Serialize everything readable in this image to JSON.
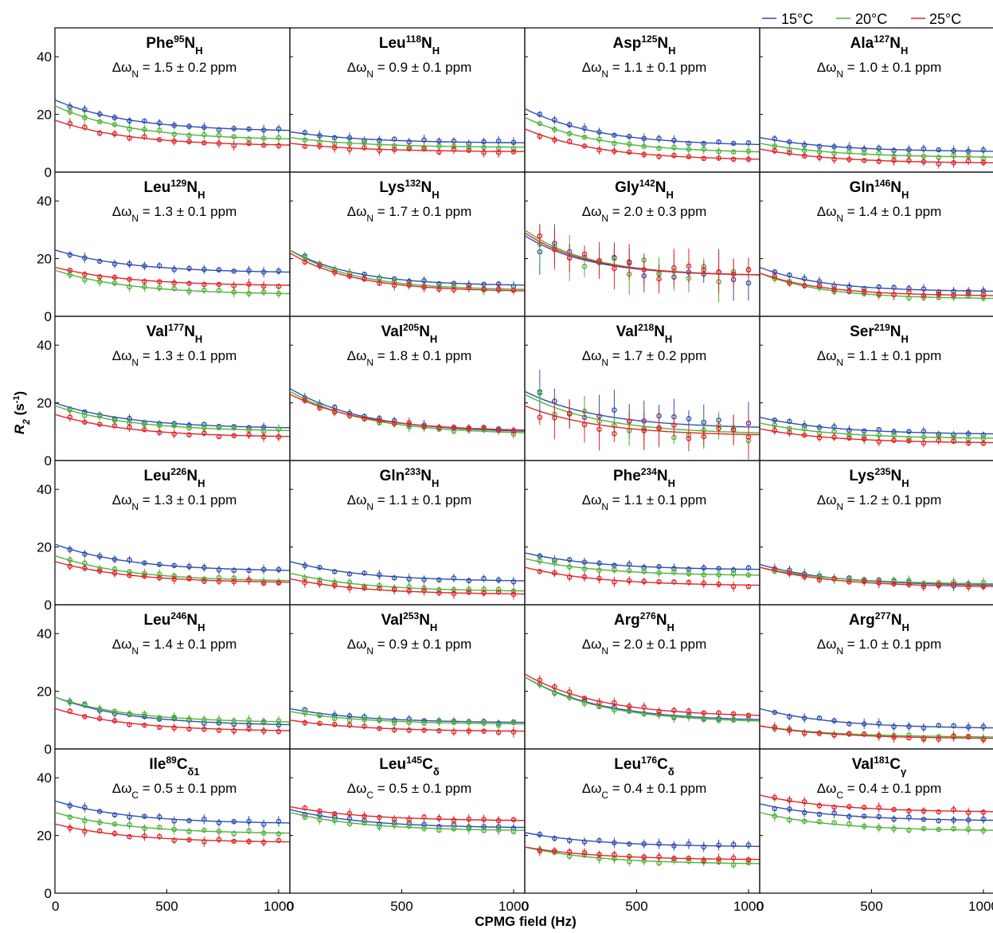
{
  "figure": {
    "xlabel": "CPMG field (Hz)",
    "ylabel_main": "R",
    "ylabel_sub": "2",
    "ylabel_units": " (s",
    "ylabel_sup": "-1",
    "ylabel_close": ")",
    "x_ticks": [
      "0",
      "500",
      "1000"
    ],
    "y_ticks": [
      "0",
      "20",
      "40"
    ],
    "xlim": [
      0,
      1050
    ],
    "ylim": [
      0,
      50
    ],
    "legend_position": "top-right",
    "legend": [
      {
        "label": "15°C",
        "color": "#2f4fb0"
      },
      {
        "label": "20°C",
        "color": "#4fb33a"
      },
      {
        "label": "25°C",
        "color": "#e0262a"
      }
    ]
  },
  "chart_data": {
    "type": "scatter",
    "x": [
      67,
      133,
      200,
      267,
      333,
      400,
      467,
      533,
      600,
      667,
      733,
      800,
      867,
      933,
      1000
    ],
    "xlabel": "CPMG field (Hz)",
    "ylabel": "R2 (s-1)",
    "xlim": [
      0,
      1050
    ],
    "ylim": [
      0,
      50
    ],
    "grid": false,
    "legend_position": "top-right",
    "panels": [
      {
        "res": "Phe",
        "num": "95",
        "atom": "N",
        "sub": "H",
        "dw": "N",
        "dwval": "1.5 ± 0.2 ppm",
        "fits": [
          [
            25,
            14
          ],
          [
            23,
            11
          ],
          [
            18,
            9
          ]
        ],
        "k": 3
      },
      {
        "res": "Leu",
        "num": "118",
        "atom": "N",
        "sub": "H",
        "dw": "N",
        "dwval": "0.9 ± 0.1 ppm",
        "fits": [
          [
            14,
            10
          ],
          [
            12,
            8.5
          ],
          [
            10,
            7
          ]
        ],
        "k": 3
      },
      {
        "res": "Asp",
        "num": "125",
        "atom": "N",
        "sub": "H",
        "dw": "N",
        "dwval": "1.1 ± 0.1 ppm",
        "fits": [
          [
            22,
            9
          ],
          [
            19,
            6.5
          ],
          [
            15,
            4
          ]
        ],
        "k": 3
      },
      {
        "res": "Ala",
        "num": "127",
        "atom": "N",
        "sub": "H",
        "dw": "N",
        "dwval": "1.0 ± 0.1 ppm",
        "fits": [
          [
            12,
            7
          ],
          [
            10,
            5
          ],
          [
            8,
            3
          ]
        ],
        "k": 3
      },
      {
        "res": "Leu",
        "num": "129",
        "atom": "N",
        "sub": "H",
        "dw": "N",
        "dwval": "1.3 ± 0.1 ppm",
        "fits": [
          [
            23,
            15
          ],
          [
            16,
            7.5
          ],
          [
            17,
            10.5
          ]
        ],
        "k": 3
      },
      {
        "res": "Lys",
        "num": "132",
        "atom": "N",
        "sub": "H",
        "dw": "N",
        "dwval": "1.7 ± 0.1 ppm",
        "fits": [
          [
            23,
            10.5
          ],
          [
            23,
            9
          ],
          [
            22,
            8.5
          ]
        ],
        "k": 3.5
      },
      {
        "res": "Gly",
        "num": "142",
        "atom": "N",
        "sub": "H",
        "dw": "N",
        "dwval": "2.0 ± 0.3 ppm",
        "fits": [
          [
            28,
            14
          ],
          [
            30,
            14
          ],
          [
            29,
            14
          ]
        ],
        "k": 3.5
      },
      {
        "res": "Gln",
        "num": "146",
        "atom": "N",
        "sub": "H",
        "dw": "N",
        "dwval": "1.4 ± 0.1 ppm",
        "fits": [
          [
            17,
            8.5
          ],
          [
            15,
            6
          ],
          [
            15,
            7
          ]
        ],
        "k": 3.5
      },
      {
        "res": "Val",
        "num": "177",
        "atom": "N",
        "sub": "H",
        "dw": "N",
        "dwval": "1.3 ± 0.1 ppm",
        "fits": [
          [
            20,
            11
          ],
          [
            19,
            10
          ],
          [
            16,
            8
          ]
        ],
        "k": 3
      },
      {
        "res": "Val",
        "num": "205",
        "atom": "N",
        "sub": "H",
        "dw": "N",
        "dwval": "1.8 ± 0.1 ppm",
        "fits": [
          [
            25,
            9.5
          ],
          [
            24,
            9
          ],
          [
            23,
            10
          ]
        ],
        "k": 3
      },
      {
        "res": "Val",
        "num": "218",
        "atom": "N",
        "sub": "H",
        "dw": "N",
        "dwval": "1.7 ± 0.2 ppm",
        "fits": [
          [
            24,
            11
          ],
          [
            23,
            9
          ],
          [
            19,
            8.5
          ]
        ],
        "k": 3
      },
      {
        "res": "Ser",
        "num": "219",
        "atom": "N",
        "sub": "H",
        "dw": "N",
        "dwval": "1.1 ± 0.1 ppm",
        "fits": [
          [
            15,
            9
          ],
          [
            13,
            7.5
          ],
          [
            11,
            6
          ]
        ],
        "k": 3
      },
      {
        "res": "Leu",
        "num": "226",
        "atom": "N",
        "sub": "H",
        "dw": "N",
        "dwval": "1.3 ± 0.1 ppm",
        "fits": [
          [
            21,
            11.5
          ],
          [
            17,
            8
          ],
          [
            15,
            7.5
          ]
        ],
        "k": 3
      },
      {
        "res": "Gln",
        "num": "233",
        "atom": "N",
        "sub": "H",
        "dw": "N",
        "dwval": "1.1 ± 0.1 ppm",
        "fits": [
          [
            15,
            8
          ],
          [
            11,
            4.5
          ],
          [
            9,
            3.5
          ]
        ],
        "k": 3
      },
      {
        "res": "Phe",
        "num": "234",
        "atom": "N",
        "sub": "H",
        "dw": "N",
        "dwval": "1.1 ± 0.1 ppm",
        "fits": [
          [
            18,
            12
          ],
          [
            16,
            10
          ],
          [
            13,
            6.5
          ]
        ],
        "k": 3
      },
      {
        "res": "Lys",
        "num": "235",
        "atom": "N",
        "sub": "H",
        "dw": "N",
        "dwval": "1.2 ± 0.1 ppm",
        "fits": [
          [
            14,
            6.5
          ],
          [
            13,
            7
          ],
          [
            13,
            6
          ]
        ],
        "k": 3
      },
      {
        "res": "Leu",
        "num": "246",
        "atom": "N",
        "sub": "H",
        "dw": "N",
        "dwval": "1.4 ± 0.1 ppm",
        "fits": [
          [
            18,
            8
          ],
          [
            18,
            9
          ],
          [
            14,
            6
          ]
        ],
        "k": 3
      },
      {
        "res": "Val",
        "num": "253",
        "atom": "N",
        "sub": "H",
        "dw": "N",
        "dwval": "0.9 ± 0.1 ppm",
        "fits": [
          [
            14,
            9
          ],
          [
            13,
            8.5
          ],
          [
            10,
            6
          ]
        ],
        "k": 3
      },
      {
        "res": "Arg",
        "num": "276",
        "atom": "N",
        "sub": "H",
        "dw": "N",
        "dwval": "2.0 ± 0.1 ppm",
        "fits": [
          [
            25,
            9.5
          ],
          [
            25,
            9
          ],
          [
            26,
            11
          ]
        ],
        "k": 3
      },
      {
        "res": "Arg",
        "num": "277",
        "atom": "N",
        "sub": "H",
        "dw": "N",
        "dwval": "1.0 ± 0.1 ppm",
        "fits": [
          [
            14,
            7
          ],
          [
            8,
            4
          ],
          [
            8,
            3.5
          ]
        ],
        "k": 3
      },
      {
        "res": "Ile",
        "num": "89",
        "atom": "C",
        "sub": "δ1",
        "dw": "C",
        "dwval": "0.5 ± 0.1 ppm",
        "fits": [
          [
            32,
            24
          ],
          [
            28,
            20.5
          ],
          [
            24,
            17.5
          ]
        ],
        "k": 3
      },
      {
        "res": "Leu",
        "num": "145",
        "atom": "C",
        "sub": "δ",
        "dw": "C",
        "dwval": "0.5 ± 0.1 ppm",
        "fits": [
          [
            29,
            22.5
          ],
          [
            28,
            21.5
          ],
          [
            30,
            25
          ]
        ],
        "k": 3
      },
      {
        "res": "Leu",
        "num": "176",
        "atom": "C",
        "sub": "δ",
        "dw": "C",
        "dwval": "0.4 ± 0.1 ppm",
        "fits": [
          [
            21,
            16
          ],
          [
            16,
            10
          ],
          [
            16,
            11.5
          ]
        ],
        "k": 3
      },
      {
        "res": "Val",
        "num": "181",
        "atom": "C",
        "sub": "γ",
        "dw": "C",
        "dwval": "0.4 ± 0.1 ppm",
        "fits": [
          [
            31,
            25
          ],
          [
            28,
            21.5
          ],
          [
            34,
            28
          ]
        ],
        "k": 3
      }
    ]
  }
}
